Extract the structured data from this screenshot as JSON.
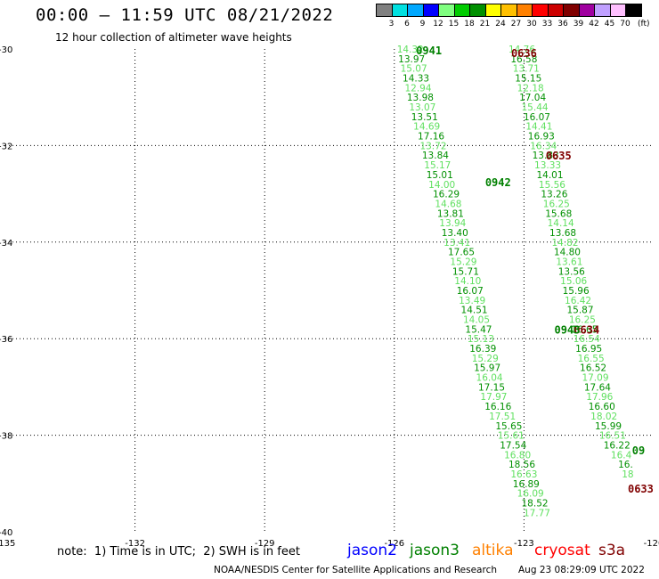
{
  "header": {
    "title": "00:00 – 11:59 UTC 08/21/2022",
    "subtitle": "12 hour collection of altimeter wave heights"
  },
  "color_scale": {
    "ticks": [
      "3",
      "6",
      "9",
      "12",
      "15",
      "18",
      "21",
      "24",
      "27",
      "30",
      "33",
      "36",
      "39",
      "42",
      "45",
      "70"
    ],
    "unit": "(ft)",
    "colors": [
      "#808080",
      "#00e0e0",
      "#00a8ff",
      "#0000ff",
      "#80ff80",
      "#00cc00",
      "#009000",
      "#ffff00",
      "#ffc000",
      "#ff8000",
      "#ff0000",
      "#cc0000",
      "#800000",
      "#a000a0",
      "#c0a0ff",
      "#ffc0ff",
      "#000000"
    ]
  },
  "footer": {
    "note": "note:  1) Time is in UTC;  2) SWH is in feet",
    "credit": "NOAA/NESDIS Center for Satellite Applications and Research",
    "datestamp": "Aug 23 08:29:09 UTC 2022",
    "legend": [
      {
        "name": "jason2",
        "color": "#0000ff"
      },
      {
        "name": "jason3",
        "color": "#008000"
      },
      {
        "name": "altika",
        "color": "#ff8000"
      },
      {
        "name": "cryosat",
        "color": "#ff0000"
      },
      {
        "name": "s3a",
        "color": "#800000"
      }
    ]
  },
  "chart_data": {
    "type": "scatter",
    "xlim": [
      -135,
      -120
    ],
    "ylim": [
      -40,
      -30
    ],
    "x_ticks": [
      "-135",
      "-132",
      "-129",
      "-126",
      "-123",
      "-120"
    ],
    "y_ticks": [
      "-30",
      "-32",
      "-34",
      "-36",
      "-38",
      "-40"
    ],
    "grid": true,
    "time_labels": [
      {
        "text": "0941",
        "x": -125.2,
        "y": -30.02,
        "color": "#008000"
      },
      {
        "text": "0636",
        "x": -123.0,
        "y": -30.07,
        "color": "#800000"
      },
      {
        "text": "0635",
        "x": -122.2,
        "y": -32.2,
        "color": "#800000"
      },
      {
        "text": "0942",
        "x": -123.6,
        "y": -32.75,
        "color": "#008000"
      },
      {
        "text": "0634",
        "x": -121.55,
        "y": -35.8,
        "color": "#800000"
      },
      {
        "text": "0943",
        "x": -122.0,
        "y": -35.8,
        "color": "#008000"
      },
      {
        "text": "0633",
        "x": -120.3,
        "y": -39.1,
        "color": "#800000"
      },
      {
        "text": "09",
        "x": -120.35,
        "y": -38.3,
        "color": "#008000"
      }
    ],
    "series": [
      {
        "name": "jason3",
        "color_light": "#60e060",
        "color_dark": "#009000",
        "points": [
          {
            "x": -125.63,
            "y": -30.0,
            "v": "14.32"
          },
          {
            "x": -125.6,
            "y": -30.2,
            "v": "13.97"
          },
          {
            "x": -125.55,
            "y": -30.4,
            "v": "15.07"
          },
          {
            "x": -125.5,
            "y": -30.6,
            "v": "14.33"
          },
          {
            "x": -125.45,
            "y": -30.8,
            "v": "12.94"
          },
          {
            "x": -125.4,
            "y": -31.0,
            "v": "13.98"
          },
          {
            "x": -125.35,
            "y": -31.2,
            "v": "13.07"
          },
          {
            "x": -125.3,
            "y": -31.4,
            "v": "13.51"
          },
          {
            "x": -125.25,
            "y": -31.6,
            "v": "14.69"
          },
          {
            "x": -125.15,
            "y": -31.8,
            "v": "17.16"
          },
          {
            "x": -125.1,
            "y": -32.0,
            "v": "13.72"
          },
          {
            "x": -125.05,
            "y": -32.2,
            "v": "13.84"
          },
          {
            "x": -125.0,
            "y": -32.4,
            "v": "15.17"
          },
          {
            "x": -124.95,
            "y": -32.6,
            "v": "15.01"
          },
          {
            "x": -124.9,
            "y": -32.8,
            "v": "14.00"
          },
          {
            "x": -124.8,
            "y": -33.0,
            "v": "16.29"
          },
          {
            "x": -124.75,
            "y": -33.2,
            "v": "14.68"
          },
          {
            "x": -124.7,
            "y": -33.4,
            "v": "13.81"
          },
          {
            "x": -124.65,
            "y": -33.6,
            "v": "13.94"
          },
          {
            "x": -124.6,
            "y": -33.8,
            "v": "13.40"
          },
          {
            "x": -124.55,
            "y": -34.0,
            "v": "13.41"
          },
          {
            "x": -124.45,
            "y": -34.2,
            "v": "17.65"
          },
          {
            "x": -124.4,
            "y": -34.4,
            "v": "15.29"
          },
          {
            "x": -124.35,
            "y": -34.6,
            "v": "15.71"
          },
          {
            "x": -124.3,
            "y": -34.8,
            "v": "14.10"
          },
          {
            "x": -124.25,
            "y": -35.0,
            "v": "16.07"
          },
          {
            "x": -124.2,
            "y": -35.2,
            "v": "13.49"
          },
          {
            "x": -124.15,
            "y": -35.4,
            "v": "14.51"
          },
          {
            "x": -124.1,
            "y": -35.6,
            "v": "14.05"
          },
          {
            "x": -124.05,
            "y": -35.8,
            "v": "15.47"
          },
          {
            "x": -124.0,
            "y": -36.0,
            "v": "15.13"
          },
          {
            "x": -123.95,
            "y": -36.2,
            "v": "16.39"
          },
          {
            "x": -123.9,
            "y": -36.4,
            "v": "15.29"
          },
          {
            "x": -123.85,
            "y": -36.6,
            "v": "15.97"
          },
          {
            "x": -123.8,
            "y": -36.8,
            "v": "16.04"
          },
          {
            "x": -123.75,
            "y": -37.0,
            "v": "17.15"
          },
          {
            "x": -123.7,
            "y": -37.2,
            "v": "17.97"
          },
          {
            "x": -123.6,
            "y": -37.4,
            "v": "16.16"
          },
          {
            "x": -123.5,
            "y": -37.6,
            "v": "17.51"
          },
          {
            "x": -123.35,
            "y": -37.8,
            "v": "15.65"
          },
          {
            "x": -123.3,
            "y": -38.0,
            "v": "15.61"
          },
          {
            "x": -123.25,
            "y": -38.2,
            "v": "17.54"
          },
          {
            "x": -123.15,
            "y": -38.4,
            "v": "16.80"
          },
          {
            "x": -123.05,
            "y": -38.6,
            "v": "18.56"
          },
          {
            "x": -123.0,
            "y": -38.8,
            "v": "16.63"
          },
          {
            "x": -122.95,
            "y": -39.0,
            "v": "16.89"
          },
          {
            "x": -122.85,
            "y": -39.2,
            "v": "16.09"
          },
          {
            "x": -122.75,
            "y": -39.4,
            "v": "18.52"
          },
          {
            "x": -122.7,
            "y": -39.6,
            "v": "17.77"
          }
        ]
      },
      {
        "name": "s3a",
        "color_light": "#60e060",
        "color_dark": "#009000",
        "points": [
          {
            "x": -123.05,
            "y": -30.0,
            "v": "14.76"
          },
          {
            "x": -123.0,
            "y": -30.2,
            "v": "16.58"
          },
          {
            "x": -122.95,
            "y": -30.4,
            "v": "13.71"
          },
          {
            "x": -122.9,
            "y": -30.6,
            "v": "15.15"
          },
          {
            "x": -122.85,
            "y": -30.8,
            "v": "12.18"
          },
          {
            "x": -122.8,
            "y": -31.0,
            "v": "17.04"
          },
          {
            "x": -122.75,
            "y": -31.2,
            "v": "15.44"
          },
          {
            "x": -122.7,
            "y": -31.4,
            "v": "16.07"
          },
          {
            "x": -122.65,
            "y": -31.6,
            "v": "14.41"
          },
          {
            "x": -122.6,
            "y": -31.8,
            "v": "16.93"
          },
          {
            "x": -122.55,
            "y": -32.0,
            "v": "16.34"
          },
          {
            "x": -122.5,
            "y": -32.2,
            "v": "13.83"
          },
          {
            "x": -122.45,
            "y": -32.4,
            "v": "13.33"
          },
          {
            "x": -122.4,
            "y": -32.6,
            "v": "14.01"
          },
          {
            "x": -122.35,
            "y": -32.8,
            "v": "15.56"
          },
          {
            "x": -122.3,
            "y": -33.0,
            "v": "13.26"
          },
          {
            "x": -122.25,
            "y": -33.2,
            "v": "16.25"
          },
          {
            "x": -122.2,
            "y": -33.4,
            "v": "15.68"
          },
          {
            "x": -122.15,
            "y": -33.6,
            "v": "14.14"
          },
          {
            "x": -122.1,
            "y": -33.8,
            "v": "13.68"
          },
          {
            "x": -122.05,
            "y": -34.0,
            "v": "14.82"
          },
          {
            "x": -122.0,
            "y": -34.2,
            "v": "14.80"
          },
          {
            "x": -121.95,
            "y": -34.4,
            "v": "13.61"
          },
          {
            "x": -121.9,
            "y": -34.6,
            "v": "13.56"
          },
          {
            "x": -121.85,
            "y": -34.8,
            "v": "15.06"
          },
          {
            "x": -121.8,
            "y": -35.0,
            "v": "15.96"
          },
          {
            "x": -121.75,
            "y": -35.2,
            "v": "16.42"
          },
          {
            "x": -121.7,
            "y": -35.4,
            "v": "15.87"
          },
          {
            "x": -121.65,
            "y": -35.6,
            "v": "16.25"
          },
          {
            "x": -121.6,
            "y": -35.8,
            "v": "16.65"
          },
          {
            "x": -121.55,
            "y": -36.0,
            "v": "16.54"
          },
          {
            "x": -121.5,
            "y": -36.2,
            "v": "16.95"
          },
          {
            "x": -121.45,
            "y": -36.4,
            "v": "16.55"
          },
          {
            "x": -121.4,
            "y": -36.6,
            "v": "16.52"
          },
          {
            "x": -121.35,
            "y": -36.8,
            "v": "17.09"
          },
          {
            "x": -121.3,
            "y": -37.0,
            "v": "17.64"
          },
          {
            "x": -121.25,
            "y": -37.2,
            "v": "17.96"
          },
          {
            "x": -121.2,
            "y": -37.4,
            "v": "16.60"
          },
          {
            "x": -121.15,
            "y": -37.6,
            "v": "18.02"
          },
          {
            "x": -121.05,
            "y": -37.8,
            "v": "15.99"
          },
          {
            "x": -120.95,
            "y": -38.0,
            "v": "16.51"
          },
          {
            "x": -120.85,
            "y": -38.2,
            "v": "16.22"
          },
          {
            "x": -120.75,
            "y": -38.4,
            "v": "16.4"
          },
          {
            "x": -120.65,
            "y": -38.6,
            "v": "16."
          },
          {
            "x": -120.6,
            "y": -38.8,
            "v": "18"
          }
        ]
      }
    ]
  }
}
